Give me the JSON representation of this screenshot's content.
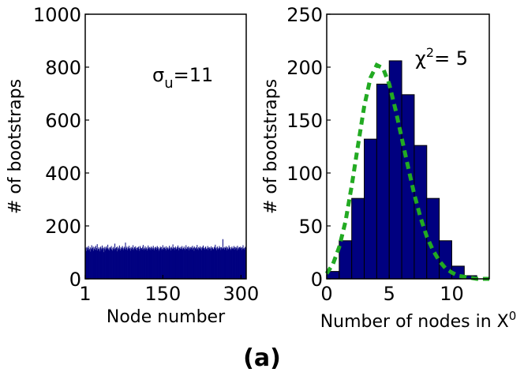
{
  "figure_label": "(a)",
  "chart_data": [
    {
      "type": "bar",
      "subtype": "histogram-dense",
      "xlabel": "Node number",
      "ylabel": "# of bootstraps",
      "xlim": [
        1,
        310
      ],
      "ylim": [
        0,
        1000
      ],
      "xticks": [
        1,
        150,
        300
      ],
      "yticks": [
        0,
        200,
        400,
        600,
        800,
        1000
      ],
      "annotation": {
        "base": "σ",
        "sub": "u",
        "rest": "=11"
      },
      "bar_color": "#000080",
      "series": [
        {
          "values": [
            112,
            118,
            105,
            121,
            109,
            116,
            124,
            108,
            113,
            119,
            103,
            115,
            127,
            111,
            117,
            122,
            106,
            114,
            120,
            110,
            125,
            109,
            116,
            131,
            107,
            113,
            119,
            112,
            104,
            118,
            122,
            115,
            109,
            126,
            113,
            117,
            101,
            121,
            114,
            108,
            119,
            123,
            112,
            116,
            129,
            110,
            115,
            107,
            120,
            118,
            113,
            124,
            111,
            106,
            117,
            121,
            114,
            109,
            133,
            116,
            112,
            119,
            104,
            122,
            115,
            110,
            118,
            126,
            113,
            107,
            120,
            116,
            111,
            124,
            118,
            109,
            115,
            121,
            113,
            137,
            110,
            117,
            122,
            108,
            114,
            119,
            125,
            112,
            116,
            106,
            121,
            113,
            118,
            110,
            127,
            115,
            109,
            120,
            114,
            123,
            111,
            117,
            108,
            119,
            115,
            122,
            113,
            106,
            124,
            118,
            112,
            116,
            110,
            121,
            128,
            114,
            109,
            117,
            123,
            111,
            115,
            119,
            107,
            113,
            126,
            118,
            112,
            120,
            116,
            109,
            122,
            114,
            118,
            111,
            125,
            115,
            108,
            119,
            113,
            121,
            117,
            110,
            124,
            114,
            119,
            112,
            106,
            116,
            122,
            115,
            120,
            109,
            113,
            127,
            118,
            111,
            117,
            121,
            114,
            108,
            123,
            116,
            112,
            119,
            110,
            115,
            125,
            113,
            118,
            107,
            121,
            116,
            112,
            130,
            114,
            119,
            109,
            117,
            122,
            115,
            111,
            120,
            113,
            126,
            118,
            108,
            116,
            121,
            114,
            112,
            119,
            124,
            110,
            115,
            117,
            122,
            113,
            109,
            118,
            127,
            114,
            111,
            120,
            116,
            123,
            108,
            115,
            119,
            112,
            121,
            117,
            110,
            125,
            114,
            118,
            106,
            122,
            116,
            113,
            119,
            111,
            128,
            115,
            109,
            120,
            117,
            114,
            123,
            112,
            118,
            108,
            121,
            115,
            126,
            113,
            117,
            110,
            119,
            122,
            114,
            111,
            116,
            124,
            109,
            118,
            113,
            120,
            115,
            107,
            123,
            117,
            112,
            119,
            114,
            110,
            121,
            116,
            129,
            113,
            118,
            108,
            122,
            115,
            111,
            117,
            124,
            114,
            119,
            109,
            120,
            116,
            112,
            150,
            113,
            118,
            110,
            121,
            117,
            115,
            123,
            108,
            119,
            114,
            111,
            126,
            116,
            120,
            113,
            109,
            118,
            122,
            115,
            112,
            117,
            124,
            110,
            119,
            114,
            121,
            116,
            108,
            125,
            113,
            118,
            111,
            120,
            115,
            122,
            117,
            109,
            119,
            113,
            127,
            114,
            116,
            110,
            121,
            118,
            112
          ]
        }
      ]
    },
    {
      "type": "bar",
      "subtype": "histogram-with-fit",
      "xlabel_base": "Number of nodes in X",
      "xlabel_sup": "0",
      "ylabel": "# of bootstraps",
      "xlim": [
        0,
        13
      ],
      "ylim": [
        0,
        250
      ],
      "xticks": [
        0,
        5,
        10
      ],
      "yticks": [
        0,
        50,
        100,
        150,
        200,
        250
      ],
      "annotation": {
        "base": "χ",
        "sup": "2",
        "rest": "= 5"
      },
      "bar_color": "#000080",
      "fit_color": "#22aa22",
      "categories": [
        0,
        1,
        2,
        3,
        4,
        5,
        6,
        7,
        8,
        9,
        10,
        11,
        12
      ],
      "series": [
        {
          "values": [
            7,
            36,
            76,
            132,
            184,
            206,
            174,
            126,
            76,
            36,
            12,
            3,
            0
          ]
        }
      ],
      "fit_curve": {
        "x": [
          0,
          0.5,
          1,
          1.5,
          2,
          2.5,
          3,
          3.5,
          4,
          4.5,
          5,
          5.5,
          6,
          6.5,
          7,
          7.5,
          8,
          8.5,
          9,
          9.5,
          10,
          10.5,
          11,
          11.5,
          12,
          12.5,
          13
        ],
        "y": [
          5,
          14,
          30,
          54,
          88,
          126,
          163,
          190,
          202,
          199,
          184,
          160,
          133,
          106,
          80,
          58,
          40,
          27,
          17,
          10,
          6,
          3,
          2,
          1,
          0,
          0,
          0
        ]
      }
    }
  ]
}
